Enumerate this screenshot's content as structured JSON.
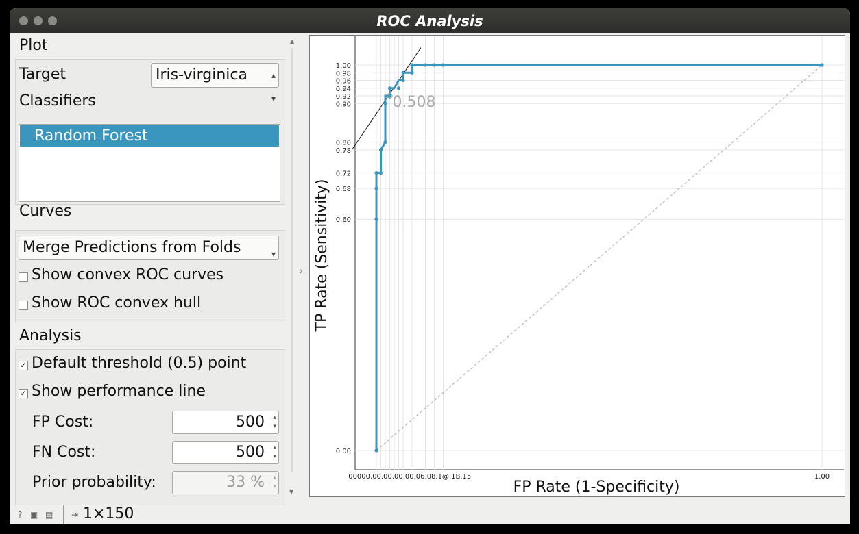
{
  "window": {
    "title": "ROC Analysis"
  },
  "plot_section": {
    "heading": "Plot",
    "target_label": "Target",
    "target_value": "Iris-virginica",
    "classifiers_label": "Classifiers",
    "classifiers": [
      "Random Forest"
    ]
  },
  "curves_section": {
    "heading": "Curves",
    "merge_option": "Merge Predictions from Folds",
    "show_convex_roc": {
      "label": "Show convex ROC curves",
      "checked": false
    },
    "show_convex_hull": {
      "label": "Show ROC convex hull",
      "checked": false
    }
  },
  "analysis_section": {
    "heading": "Analysis",
    "default_threshold": {
      "label": "Default threshold (0.5) point",
      "checked": true
    },
    "performance_line": {
      "label": "Show performance line",
      "checked": true
    },
    "fp_cost": {
      "label": "FP Cost:",
      "value": "500"
    },
    "fn_cost": {
      "label": "FN Cost:",
      "value": "500"
    },
    "prior_probability": {
      "label": "Prior probability:",
      "value": "33 %"
    }
  },
  "status_bar": {
    "data_info": "1×150"
  },
  "icons": [
    "help-icon",
    "save-icon",
    "report-icon",
    "input-icon",
    "splitter-arrow-icon"
  ],
  "colors": {
    "curve": "#3a96bf",
    "selection": "#3a96bf"
  },
  "chart_data": {
    "type": "line",
    "xlabel": "FP Rate (1-Specificity)",
    "ylabel": "TP Rate (Sensitivity)",
    "xlim": [
      0,
      1
    ],
    "ylim": [
      0,
      1
    ],
    "threshold_label": "0.508",
    "y_ticks": [
      0.0,
      0.6,
      0.68,
      0.72,
      0.78,
      0.8,
      0.9,
      0.92,
      0.94,
      0.96,
      0.98,
      1.0
    ],
    "y_tick_labels": [
      "0.00",
      "0.60",
      "0.68",
      "0.72",
      "0.78",
      "0.80",
      "0.90",
      "0.92",
      "0.94",
      "0.96",
      "0.98",
      "1.00"
    ],
    "x_ticks": [
      0.0,
      0.01,
      0.02,
      0.03,
      0.04,
      0.05,
      0.06,
      0.08,
      0.11,
      0.13,
      0.15,
      1.0
    ],
    "x_tick_labels": "00000.00.00.00.00.06.08.1@.1B.15",
    "x_tick_label_end": "1.00",
    "series": [
      {
        "x": [
          0.0,
          0.0,
          0.0,
          0.0,
          0.01,
          0.01,
          0.02,
          0.02,
          0.02,
          0.03,
          0.03,
          0.04,
          0.05,
          0.06,
          0.06,
          0.06,
          0.08,
          0.08,
          0.11,
          0.13,
          0.15,
          1.0
        ],
        "y": [
          0.0,
          0.6,
          0.68,
          0.72,
          0.72,
          0.78,
          0.8,
          0.9,
          0.92,
          0.92,
          0.94,
          0.94,
          0.96,
          0.96,
          0.98,
          0.98,
          0.98,
          1.0,
          1.0,
          1.0,
          1.0,
          1.0
        ],
        "markers": [
          [
            0.0,
            0.0
          ],
          [
            0.0,
            0.6
          ],
          [
            0.0,
            0.68
          ],
          [
            0.0,
            0.72
          ],
          [
            0.01,
            0.72
          ],
          [
            0.01,
            0.78
          ],
          [
            0.02,
            0.8
          ],
          [
            0.02,
            0.9
          ],
          [
            0.03,
            0.92
          ],
          [
            0.03,
            0.94
          ],
          [
            0.05,
            0.94
          ],
          [
            0.06,
            0.96
          ],
          [
            0.06,
            0.98
          ],
          [
            0.08,
            0.98
          ],
          [
            0.08,
            1.0
          ],
          [
            0.11,
            1.0
          ],
          [
            0.13,
            1.0
          ],
          [
            0.15,
            1.0
          ],
          [
            1.0,
            1.0
          ]
        ]
      }
    ],
    "threshold_point": [
      0.03,
      0.92
    ],
    "diagonal": [
      [
        0,
        0
      ],
      [
        1,
        1
      ]
    ],
    "performance_line": [
      [
        -0.055,
        0.78
      ],
      [
        0.1,
        1.045
      ]
    ]
  }
}
